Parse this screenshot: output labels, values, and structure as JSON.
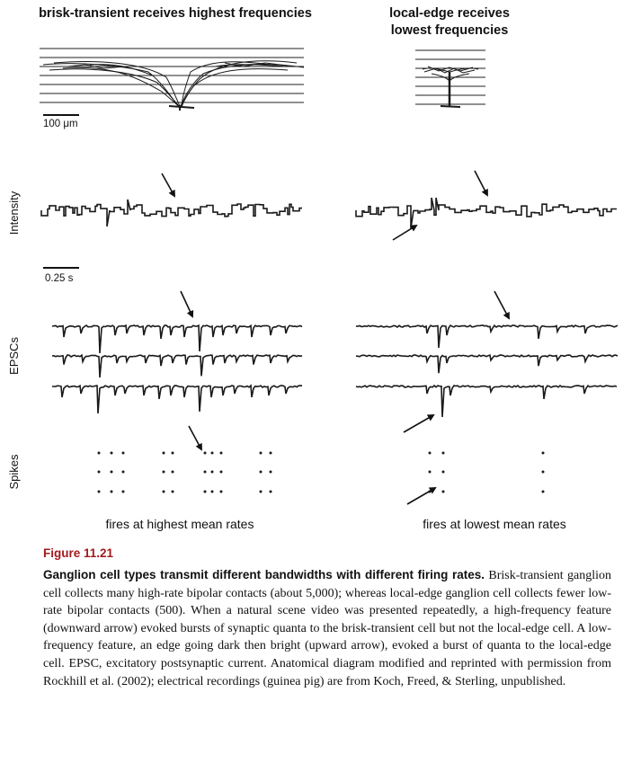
{
  "figure": {
    "left_title": "brisk-transient receives highest frequencies",
    "right_title": "local-edge receives lowest frequencies",
    "scale_spatial": "100 μm",
    "scale_time": "0.25 s",
    "row_labels": {
      "intensity": "Intensity",
      "epscs": "EPSCs",
      "spikes": "Spikes"
    },
    "left_bottom": "fires at highest mean rates",
    "right_bottom": "fires at lowest mean rates",
    "ink_color": "#1a1a1a",
    "figure_color": "#a11a1e"
  },
  "caption": {
    "number": "Figure 11.21",
    "title": "Ganglion cell types transmit different bandwidths with different firing rates.",
    "body": " Brisk-transient ganglion cell collects many high-rate bipolar contacts (about 5,000); whereas local-edge ganglion cell collects fewer low-rate bipolar contacts (500). When a natural scene video was presented repeatedly, a high-frequency feature (downward arrow) evoked bursts of synaptic quanta to the brisk-transient cell but not the local-edge cell. A low-frequency feature, an edge going dark then bright (upward arrow), evoked a burst of quanta to the local-edge cell. EPSC, excitatory postsynaptic current. Anatomical diagram modified and reprinted with permission from Rockhill et al. (2002); electrical recordings (guinea pig) are from Koch, Freed, & Sterling, unpublished."
  }
}
